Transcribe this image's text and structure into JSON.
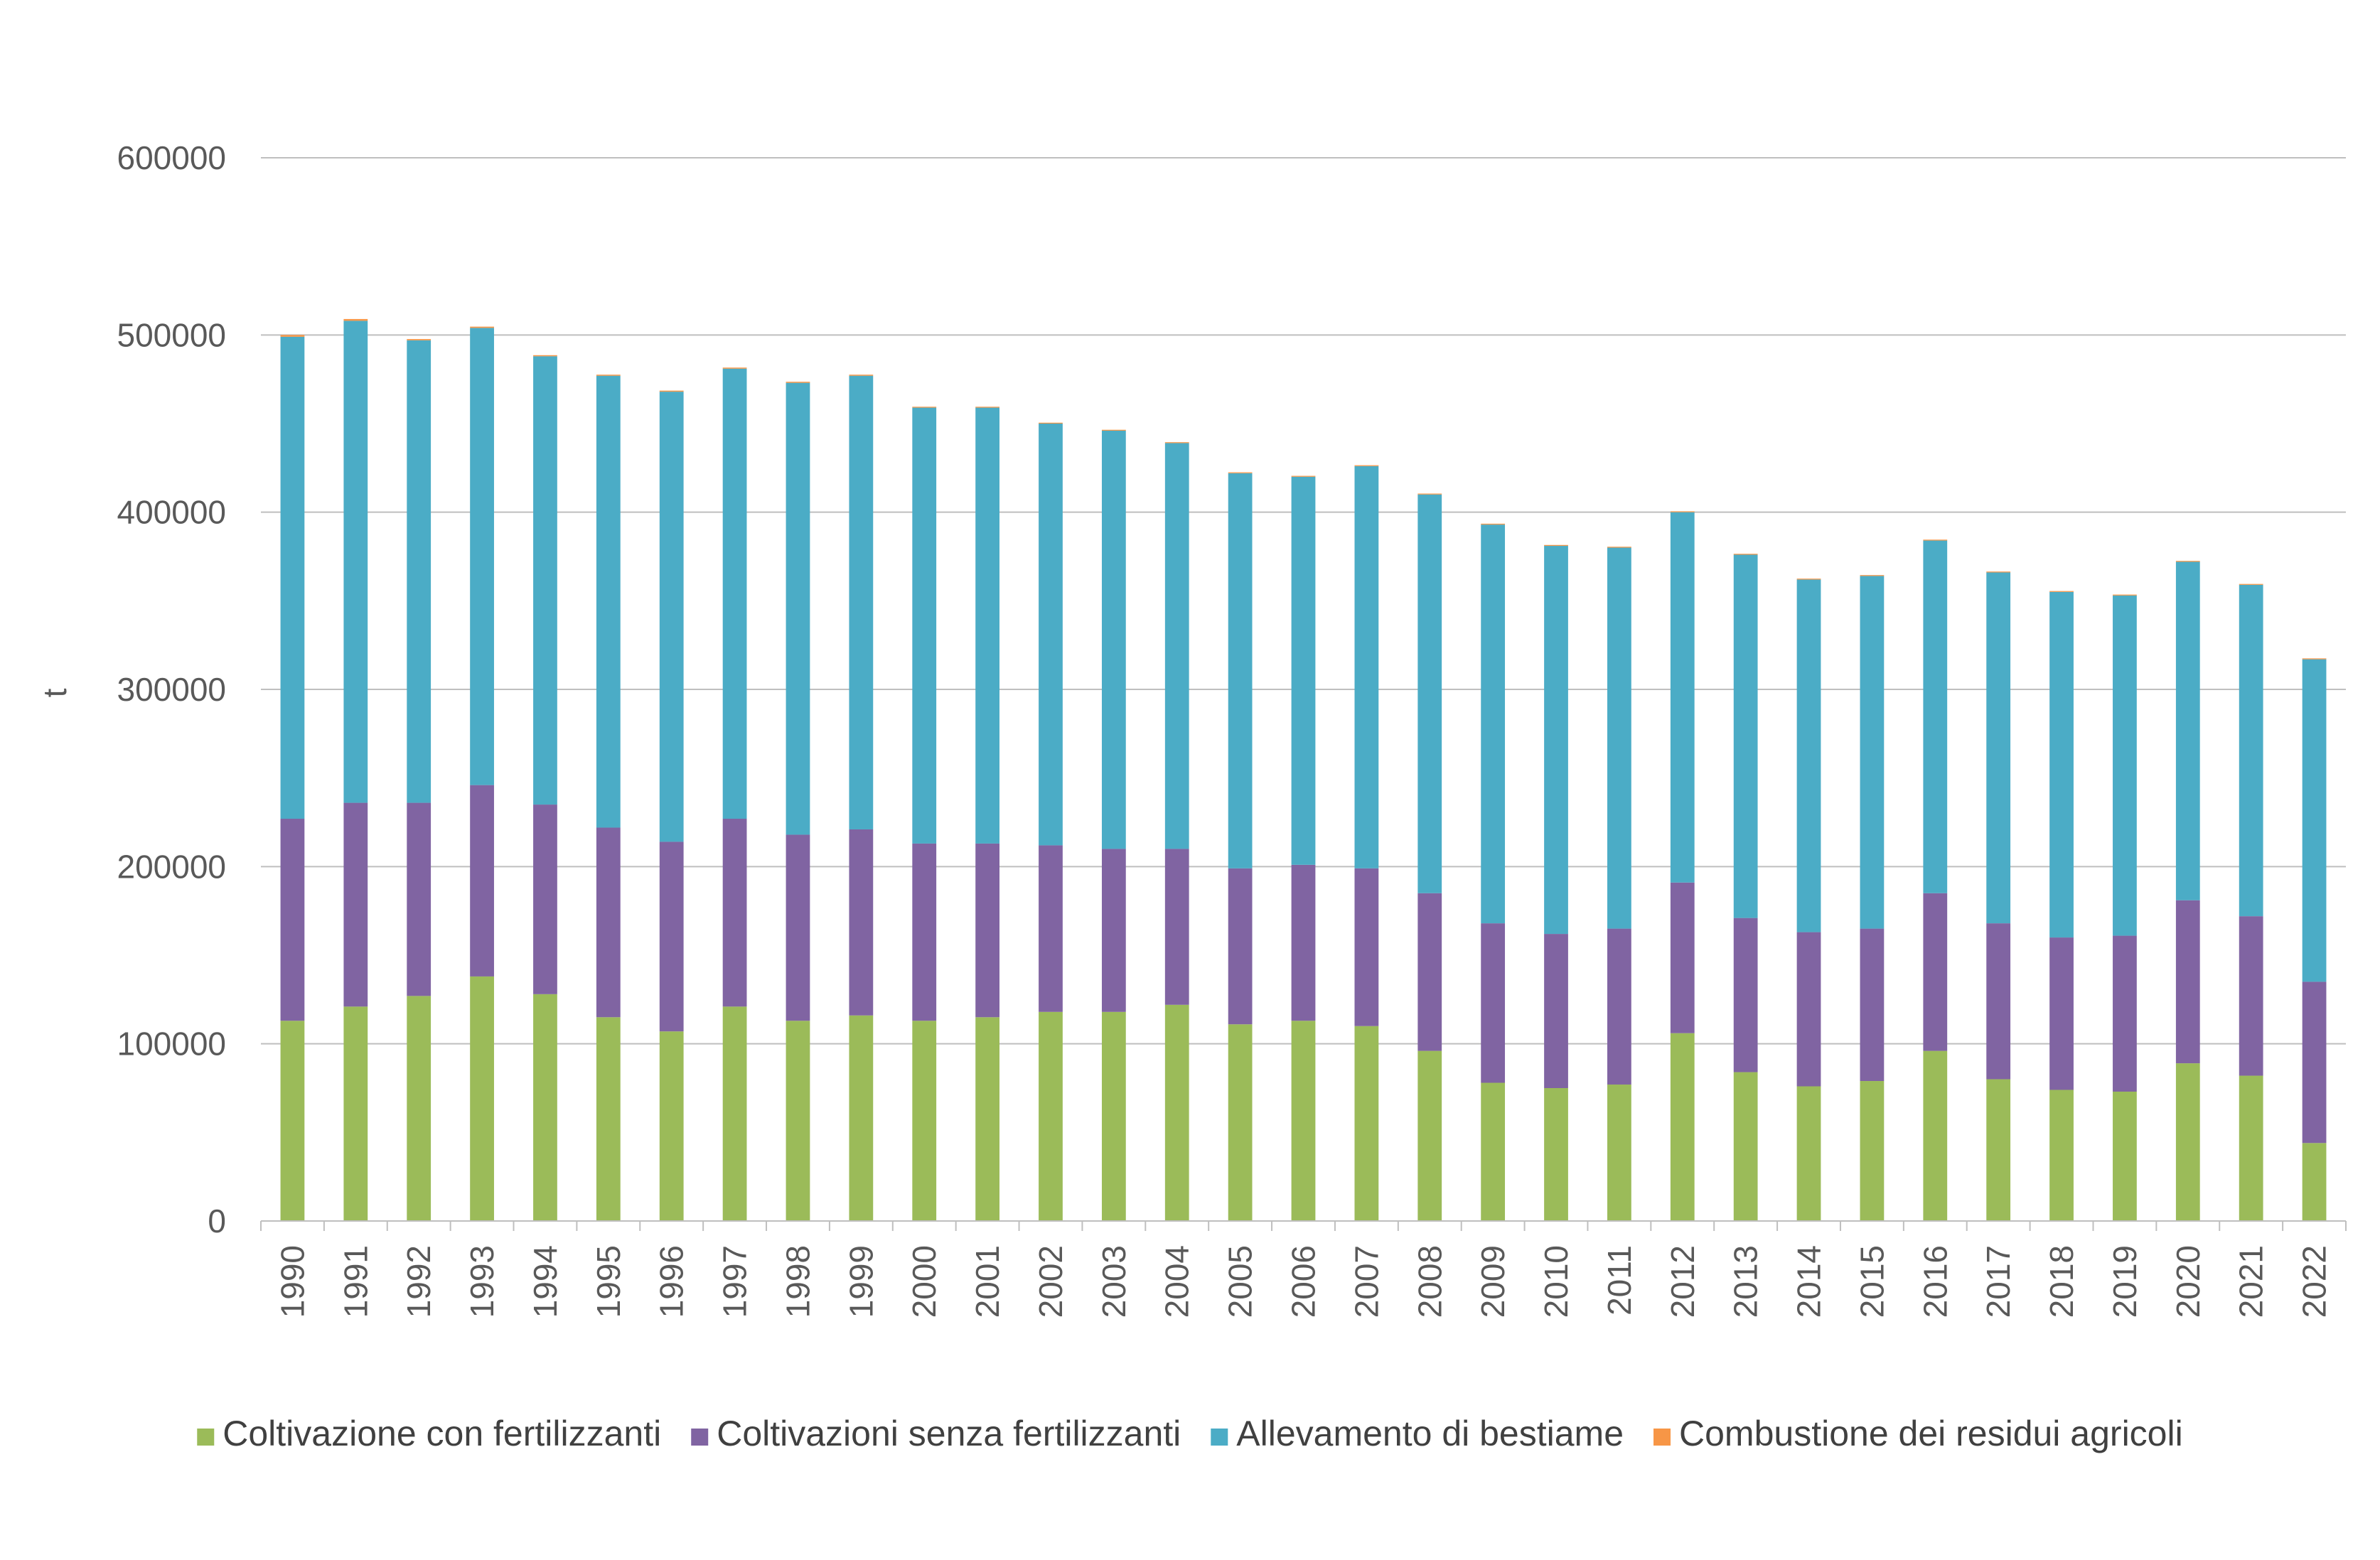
{
  "chart_data": {
    "type": "bar",
    "stacked": true,
    "title": "",
    "xlabel": "",
    "ylabel": "t",
    "ylim": [
      0,
      600000
    ],
    "yticks": [
      "0",
      "100000",
      "200000",
      "300000",
      "400000",
      "500000",
      "600000"
    ],
    "grid": "horizontal",
    "legend_position": "bottom",
    "categories": [
      "1990",
      "1991",
      "1992",
      "1993",
      "1994",
      "1995",
      "1996",
      "1997",
      "1998",
      "1999",
      "2000",
      "2001",
      "2002",
      "2003",
      "2004",
      "2005",
      "2006",
      "2007",
      "2008",
      "2009",
      "2010",
      "2011",
      "2012",
      "2013",
      "2014",
      "2015",
      "2016",
      "2017",
      "2018",
      "2019",
      "2020",
      "2021",
      "2022"
    ],
    "series": [
      {
        "name": "Coltivazione con fertilizzanti",
        "color": "#9BBB59",
        "values": [
          113000,
          121000,
          127000,
          138000,
          128000,
          115000,
          107000,
          121000,
          113000,
          116000,
          113000,
          115000,
          118000,
          118000,
          122000,
          111000,
          113000,
          110000,
          96000,
          78000,
          75000,
          77000,
          106000,
          84000,
          76000,
          79000,
          96000,
          80000,
          74000,
          73000,
          89000,
          82000,
          44000
        ]
      },
      {
        "name": "Coltivazioni senza fertilizzanti",
        "color": "#8064A2",
        "values": [
          114000,
          115000,
          109000,
          108000,
          107000,
          107000,
          107000,
          106000,
          105000,
          105000,
          100000,
          98000,
          94000,
          92000,
          88000,
          88000,
          88000,
          89000,
          89000,
          90000,
          87000,
          88000,
          85000,
          87000,
          87000,
          86000,
          89000,
          88000,
          86000,
          88000,
          92000,
          90000,
          91000
        ]
      },
      {
        "name": "Allevamento di bestiame",
        "color": "#4BACC6",
        "values": [
          272000,
          272000,
          261000,
          258000,
          253000,
          255000,
          254000,
          254000,
          255000,
          256000,
          246000,
          246000,
          238000,
          236000,
          229000,
          223000,
          219000,
          227000,
          225000,
          225000,
          219000,
          215000,
          209000,
          205000,
          199000,
          199000,
          199000,
          198000,
          195000,
          192000,
          191000,
          187000,
          182000
        ]
      },
      {
        "name": "Combustione dei residui agricoli",
        "color": "#F79646",
        "values": [
          1000,
          1000,
          700,
          700,
          600,
          600,
          600,
          600,
          600,
          600,
          500,
          500,
          500,
          500,
          500,
          500,
          500,
          500,
          500,
          500,
          500,
          500,
          500,
          500,
          500,
          500,
          500,
          500,
          500,
          500,
          500,
          500,
          500
        ]
      }
    ]
  },
  "colors": {
    "grid": "#BFBFBF",
    "axis": "#BFBFBF",
    "text": "#595959"
  }
}
